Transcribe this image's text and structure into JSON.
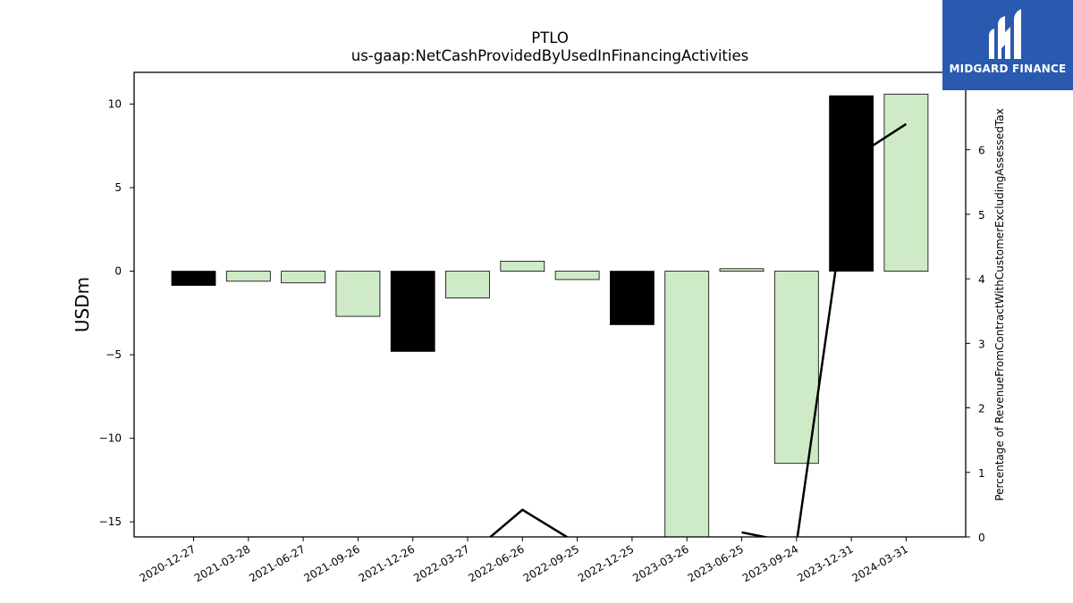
{
  "chart_data": {
    "type": "bar",
    "title": "PTLO",
    "subtitle": "us-gaap:NetCashProvidedByUsedInFinancingActivities",
    "ylabel": "USDm",
    "y2label": "Percentage of RevenueFromContractWithCustomerExcludingAssessedTax",
    "categories": [
      "2020-12-27",
      "2021-03-28",
      "2021-06-27",
      "2021-09-26",
      "2021-12-26",
      "2022-03-27",
      "2022-06-26",
      "2022-09-25",
      "2022-12-25",
      "2023-03-26",
      "2023-06-25",
      "2023-09-24",
      "2023-12-31",
      "2024-03-31"
    ],
    "values": [
      -0.85,
      -0.6,
      -0.7,
      -2.7,
      -4.8,
      -1.6,
      0.6,
      -0.5,
      -3.2,
      -16.0,
      0.15,
      -11.5,
      10.5,
      10.6
    ],
    "bar_colors": [
      "#000000",
      "#ceeac6",
      "#ceeac6",
      "#ceeac6",
      "#000000",
      "#ceeac6",
      "#ceeac6",
      "#ceeac6",
      "#000000",
      "#ceeac6",
      "#ceeac6",
      "#ceeac6",
      "#000000",
      "#ceeac6"
    ],
    "ylim": [
      -15.9,
      11.9
    ],
    "yticks": [
      10,
      5,
      0,
      -5,
      -10,
      -15
    ],
    "ytick_labels": [
      "10",
      "5",
      "0",
      "−5",
      "−10",
      "−15"
    ],
    "line_series": {
      "values": [
        -0.5,
        null,
        null,
        null,
        null,
        -0.3,
        0.42,
        -0.1,
        null,
        null,
        0.07,
        -0.1,
        5.85,
        6.4
      ],
      "color": "#000000"
    },
    "y2lim": [
      0,
      7.2
    ],
    "y2ticks": [
      0,
      1,
      2,
      3,
      4,
      5,
      6
    ],
    "y2tick_labels": [
      "0",
      "1",
      "2",
      "3",
      "4",
      "5",
      "6"
    ],
    "grid": false
  },
  "logo": {
    "text": "MIDGARD FINANCE",
    "bg_color": "#2a5ab0"
  }
}
